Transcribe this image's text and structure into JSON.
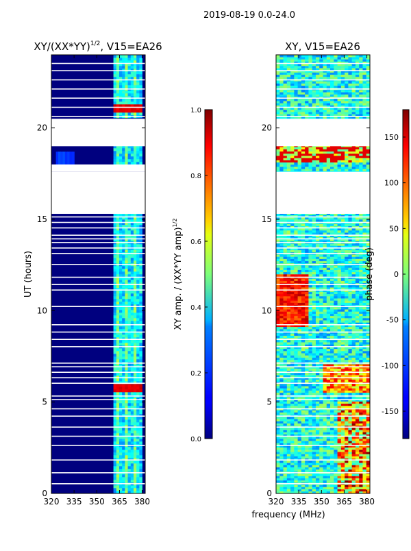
{
  "chart_data": [
    {
      "type": "heatmap",
      "title": "XY/(XX*YY)",
      "title_exponent": "1/2",
      "title_suffix": ", V15=EA26",
      "xlabel": "frequency (MHz)",
      "ylabel": "UT (hours)",
      "xlim": [
        320,
        382
      ],
      "ylim": [
        0,
        24
      ],
      "x_ticks": [
        320,
        335,
        350,
        365,
        380
      ],
      "y_ticks": [
        0,
        5,
        10,
        15,
        20
      ],
      "colorbar": {
        "label": "XY amp. / (XX*YY amp)",
        "label_exponent": "1/2",
        "range": [
          0.0,
          1.0
        ],
        "ticks": [
          0.0,
          0.2,
          0.4,
          0.6,
          0.8,
          1.0
        ],
        "tick_labels": [
          "0.0",
          "0.2",
          "0.4",
          "0.6",
          "0.8",
          "1.0"
        ]
      },
      "data_gaps_hours": [
        [
          17.6,
          18.0
        ],
        [
          15.3,
          17.6
        ],
        [
          19.0,
          20.5
        ]
      ],
      "active_band_MHz": [
        361,
        380
      ],
      "high_value_hours": [
        5.7,
        21.0
      ]
    },
    {
      "type": "heatmap",
      "title": "XY, V15=EA26",
      "xlabel": "frequency (MHz)",
      "xlim": [
        320,
        382
      ],
      "ylim": [
        0,
        24
      ],
      "x_ticks": [
        320,
        335,
        350,
        365,
        380
      ],
      "y_ticks": [
        0,
        5,
        10,
        15,
        20
      ],
      "colorbar": {
        "label": "phase (deg)",
        "range": [
          -180,
          180
        ],
        "ticks": [
          -150,
          -100,
          -50,
          0,
          50,
          100,
          150
        ]
      },
      "data_gaps_hours": [
        [
          15.3,
          17.6
        ],
        [
          19.0,
          20.5
        ]
      ]
    }
  ],
  "figure": {
    "suptitle": "2019-08-19 0.0-24.0",
    "shared_xlabel": "frequency (MHz)"
  }
}
